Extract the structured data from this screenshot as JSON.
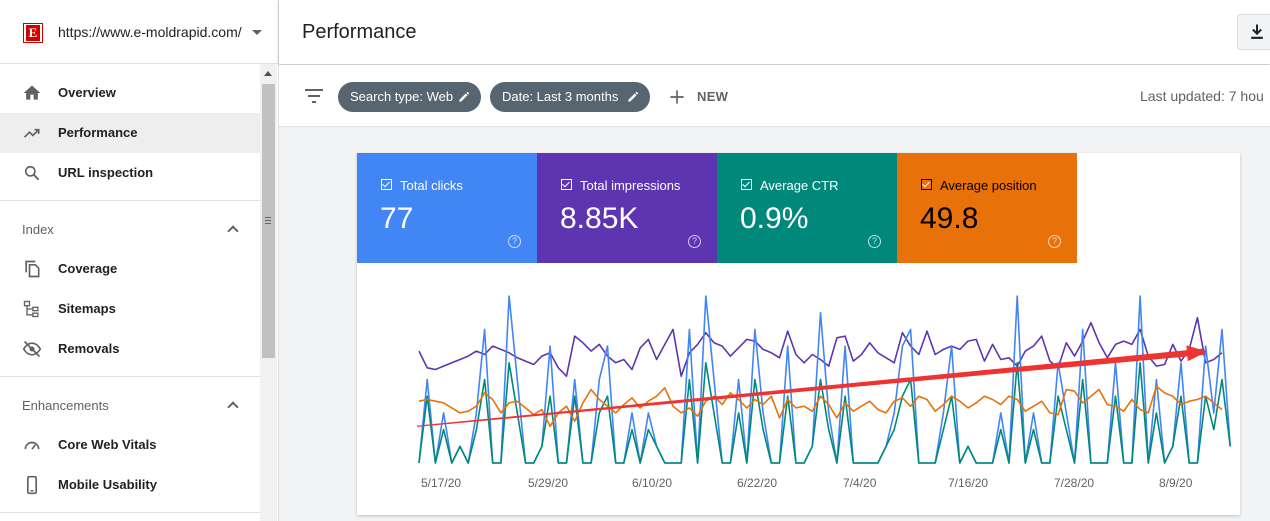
{
  "property": {
    "url": "https://www.e-moldrapid.com/",
    "logo_letter": "E"
  },
  "sidebar": {
    "items": [
      {
        "label": "Overview",
        "icon": "home-icon"
      },
      {
        "label": "Performance",
        "icon": "trending-up-icon",
        "active": true
      },
      {
        "label": "URL inspection",
        "icon": "search-icon"
      }
    ],
    "sections": [
      {
        "title": "Index",
        "items": [
          {
            "label": "Coverage",
            "icon": "file-copy-icon"
          },
          {
            "label": "Sitemaps",
            "icon": "sitemap-icon"
          },
          {
            "label": "Removals",
            "icon": "visibility-off-icon"
          }
        ]
      },
      {
        "title": "Enhancements",
        "items": [
          {
            "label": "Core Web Vitals",
            "icon": "speed-gauge-icon"
          },
          {
            "label": "Mobile Usability",
            "icon": "phone-icon"
          }
        ]
      }
    ]
  },
  "header": {
    "title": "Performance",
    "download_icon": "download-icon"
  },
  "filters": {
    "chips": [
      "Search type: Web",
      "Date: Last 3 months"
    ],
    "new_label": "NEW",
    "last_updated": "Last updated: 7 hou"
  },
  "metrics": [
    {
      "label": "Total clicks",
      "value": "77",
      "color": "#4285f4",
      "text_color": "#ffffff"
    },
    {
      "label": "Total impressions",
      "value": "8.85K",
      "color": "#5e35b1",
      "text_color": "#ffffff"
    },
    {
      "label": "Average CTR",
      "value": "0.9%",
      "color": "#00897b",
      "text_color": "#ffffff"
    },
    {
      "label": "Average position",
      "value": "49.8",
      "color": "#e8710a",
      "text_color": "#000000"
    }
  ],
  "chart_data": {
    "type": "line",
    "x_ticks": [
      "5/17/20",
      "5/29/20",
      "6/10/20",
      "6/22/20",
      "7/4/20",
      "7/16/20",
      "7/28/20",
      "8/9/20"
    ],
    "series": [
      {
        "key": "impressions",
        "color": "#5e35b1",
        "values": [
          0.67,
          0.57,
          0.56,
          0.58,
          0.6,
          0.62,
          0.64,
          0.67,
          0.65,
          0.7,
          0.68,
          0.66,
          0.63,
          0.61,
          0.59,
          0.64,
          0.66,
          0.57,
          0.52,
          0.76,
          0.72,
          0.67,
          0.71,
          0.64,
          0.6,
          0.62,
          0.56,
          0.69,
          0.74,
          0.62,
          0.71,
          0.8,
          0.52,
          0.66,
          0.71,
          0.78,
          0.72,
          0.7,
          0.64,
          0.69,
          0.74,
          0.73,
          0.68,
          0.66,
          0.63,
          0.79,
          0.65,
          0.6,
          0.65,
          0.62,
          0.58,
          0.75,
          0.76,
          0.61,
          0.65,
          0.72,
          0.66,
          0.63,
          0.6,
          0.78,
          0.7,
          0.65,
          0.79,
          0.65,
          0.68,
          0.7,
          0.68,
          0.73,
          0.74,
          0.61,
          0.71,
          0.62,
          0.63,
          0.58,
          0.67,
          0.7,
          0.76,
          0.61,
          0.57,
          0.72,
          0.64,
          0.73,
          0.84,
          0.72,
          0.63,
          0.71,
          0.73,
          0.71,
          0.8,
          0.64,
          0.58,
          0.59,
          0.71,
          0.61,
          0.68,
          0.87,
          0.6,
          0.62,
          0.66
        ]
      },
      {
        "key": "clicks",
        "color": "#4285f4",
        "values": [
          0,
          0.5,
          0,
          0.3,
          0,
          0.1,
          0,
          0.3,
          0.8,
          0,
          0,
          1.0,
          0.5,
          0,
          0,
          0.1,
          0.7,
          0,
          0,
          0.5,
          0,
          0,
          0.5,
          0.7,
          0,
          0,
          0.3,
          0,
          0.3,
          0.1,
          0,
          0,
          0,
          0.8,
          0,
          1.0,
          0.5,
          0,
          0,
          0.5,
          0,
          0.8,
          0.3,
          0,
          0,
          0.7,
          0,
          0,
          0.1,
          0.9,
          0.3,
          0,
          0.7,
          0,
          0,
          0,
          0,
          0.1,
          0.3,
          0.7,
          0.8,
          0,
          0,
          0,
          0.3,
          0.7,
          0,
          0.1,
          0,
          0,
          0,
          0.3,
          0,
          1.0,
          0,
          0.3,
          0,
          0,
          0.6,
          0.3,
          0,
          0.8,
          0,
          0,
          0,
          0.6,
          0,
          0,
          1.0,
          0,
          0.5,
          0,
          0.1,
          0.6,
          0,
          0,
          0.7,
          0.3,
          0.8,
          0.1
        ]
      },
      {
        "key": "ctr",
        "color": "#00897b",
        "values": [
          0,
          0.4,
          0,
          0.2,
          0,
          0.1,
          0,
          0.2,
          0.5,
          0,
          0,
          0.6,
          0.3,
          0,
          0,
          0.1,
          0.4,
          0,
          0,
          0.4,
          0,
          0,
          0.3,
          0.4,
          0,
          0,
          0.2,
          0,
          0.2,
          0.1,
          0,
          0,
          0,
          0.5,
          0,
          0.6,
          0.3,
          0,
          0,
          0.3,
          0,
          0.5,
          0.2,
          0,
          0,
          0.4,
          0,
          0,
          0.1,
          0.5,
          0.2,
          0,
          0.4,
          0,
          0,
          0,
          0,
          0.1,
          0.2,
          0.4,
          0.5,
          0,
          0,
          0,
          0.2,
          0.4,
          0,
          0.1,
          0,
          0,
          0,
          0.2,
          0,
          0.6,
          0,
          0.2,
          0,
          0,
          0.4,
          0.2,
          0,
          0.5,
          0,
          0,
          0,
          0.4,
          0,
          0,
          0.6,
          0,
          0.3,
          0,
          0.1,
          0.4,
          0,
          0,
          0.4,
          0.2,
          0.5,
          0.1
        ]
      },
      {
        "key": "position",
        "color": "#e8710a",
        "values": [
          0.37,
          0.38,
          0.37,
          0.36,
          0.33,
          0.3,
          0.31,
          0.34,
          0.42,
          0.38,
          0.3,
          0.36,
          0.37,
          0.33,
          0.29,
          0.32,
          0.22,
          0.3,
          0.34,
          0.25,
          0.36,
          0.44,
          0.38,
          0.34,
          0.3,
          0.35,
          0.39,
          0.33,
          0.37,
          0.4,
          0.45,
          0.34,
          0.3,
          0.33,
          0.28,
          0.37,
          0.4,
          0.35,
          0.42,
          0.38,
          0.33,
          0.38,
          0.35,
          0.4,
          0.27,
          0.38,
          0.33,
          0.34,
          0.31,
          0.4,
          0.35,
          0.27,
          0.36,
          0.31,
          0.34,
          0.37,
          0.32,
          0.3,
          0.37,
          0.39,
          0.34,
          0.4,
          0.38,
          0.31,
          0.35,
          0.4,
          0.37,
          0.33,
          0.36,
          0.4,
          0.38,
          0.35,
          0.4,
          0.38,
          0.31,
          0.34,
          0.37,
          0.3,
          0.29,
          0.44,
          0.43,
          0.36,
          0.4,
          0.44,
          0.35,
          0.34,
          0.31,
          0.38,
          0.32,
          0.3,
          0.46,
          0.42,
          0.4,
          0.35,
          0.37,
          0.38,
          0.4,
          0.36,
          0.32
        ]
      }
    ],
    "annotation": {
      "type": "arrow",
      "color": "#ee3333",
      "from": 0.16,
      "to": 0.68
    }
  }
}
